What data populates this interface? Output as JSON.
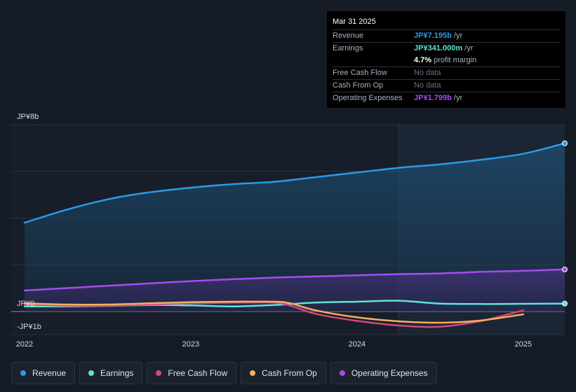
{
  "tooltip": {
    "date": "Mar 31 2025",
    "rows": [
      {
        "label": "Revenue",
        "value": "JP¥7.195b",
        "unit": " /yr",
        "color": "#2b9be8"
      },
      {
        "label": "Earnings",
        "value": "JP¥341.000m",
        "unit": " /yr",
        "color": "#5fe3d8"
      },
      {
        "label": "",
        "value": "4.7%",
        "unit": " profit margin",
        "color": "#ffffff"
      },
      {
        "label": "Free Cash Flow",
        "value": "No data",
        "unit": "",
        "color": "#6b7380"
      },
      {
        "label": "Cash From Op",
        "value": "No data",
        "unit": "",
        "color": "#6b7380"
      },
      {
        "label": "Operating Expenses",
        "value": "JP¥1.799b",
        "unit": " /yr",
        "color": "#a64cf0"
      }
    ]
  },
  "chart_data": {
    "type": "area",
    "y_top_label": "JP¥8b",
    "y_zero_label": "JP¥0",
    "y_bottom_label": "-JP¥1b",
    "ylim": [
      -1,
      8
    ],
    "xlim": [
      2021.92,
      2025.25
    ],
    "x_ticks": [
      {
        "value": 2022,
        "label": "2022"
      },
      {
        "value": 2023,
        "label": "2023"
      },
      {
        "value": 2024,
        "label": "2024"
      },
      {
        "value": 2025,
        "label": "2025"
      }
    ],
    "forecast_start": 2024.25,
    "grid": true,
    "series": [
      {
        "name": "Revenue",
        "color": "#2b9be8",
        "fill": true,
        "x": [
          2022.0,
          2022.25,
          2022.5,
          2022.75,
          2023.0,
          2023.25,
          2023.5,
          2023.75,
          2024.0,
          2024.25,
          2024.5,
          2024.75,
          2025.0,
          2025.25
        ],
        "y": [
          3.8,
          4.35,
          4.8,
          5.1,
          5.3,
          5.45,
          5.55,
          5.75,
          5.95,
          6.15,
          6.3,
          6.5,
          6.75,
          7.2
        ]
      },
      {
        "name": "Earnings",
        "color": "#5fe3d8",
        "fill": false,
        "x": [
          2022.0,
          2022.25,
          2022.5,
          2022.75,
          2023.0,
          2023.25,
          2023.5,
          2023.75,
          2024.0,
          2024.25,
          2024.5,
          2024.75,
          2025.0,
          2025.25
        ],
        "y": [
          0.22,
          0.22,
          0.24,
          0.28,
          0.26,
          0.22,
          0.28,
          0.38,
          0.42,
          0.46,
          0.34,
          0.32,
          0.33,
          0.34
        ]
      },
      {
        "name": "Free Cash Flow",
        "color": "#d6457f",
        "fill": false,
        "x": [
          2022.0,
          2022.25,
          2022.5,
          2022.75,
          2023.0,
          2023.25,
          2023.5,
          2023.6,
          2023.75,
          2024.0,
          2024.25,
          2024.5,
          2024.75,
          2025.0
        ],
        "y": [
          0.3,
          0.25,
          0.25,
          0.3,
          0.35,
          0.38,
          0.38,
          0.25,
          -0.1,
          -0.4,
          -0.6,
          -0.65,
          -0.4,
          0.05
        ]
      },
      {
        "name": "Cash From Op",
        "color": "#f2b05e",
        "fill": false,
        "x": [
          2022.0,
          2022.25,
          2022.5,
          2022.75,
          2023.0,
          2023.25,
          2023.5,
          2023.6,
          2023.75,
          2024.0,
          2024.25,
          2024.5,
          2024.75,
          2025.0
        ],
        "y": [
          0.35,
          0.3,
          0.3,
          0.35,
          0.4,
          0.42,
          0.42,
          0.35,
          0.05,
          -0.25,
          -0.42,
          -0.48,
          -0.38,
          -0.12
        ]
      },
      {
        "name": "Operating Expenses",
        "color": "#a64cf0",
        "fill": true,
        "x": [
          2022.0,
          2022.25,
          2022.5,
          2022.75,
          2023.0,
          2023.25,
          2023.5,
          2023.75,
          2024.0,
          2024.25,
          2024.5,
          2024.75,
          2025.0,
          2025.25
        ],
        "y": [
          0.9,
          1.0,
          1.1,
          1.2,
          1.3,
          1.38,
          1.45,
          1.5,
          1.55,
          1.6,
          1.63,
          1.7,
          1.74,
          1.8
        ]
      }
    ]
  },
  "legend": [
    {
      "label": "Revenue",
      "color": "#2b9be8"
    },
    {
      "label": "Earnings",
      "color": "#5fe3d8"
    },
    {
      "label": "Free Cash Flow",
      "color": "#d6457f"
    },
    {
      "label": "Cash From Op",
      "color": "#f2b05e"
    },
    {
      "label": "Operating Expenses",
      "color": "#a64cf0"
    }
  ]
}
